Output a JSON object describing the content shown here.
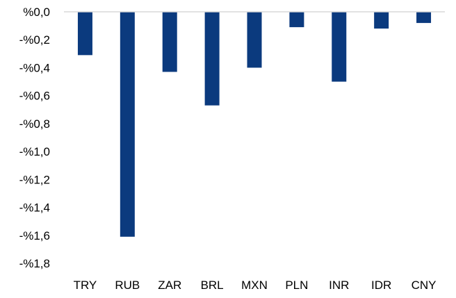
{
  "chart_data": {
    "type": "bar",
    "title": "",
    "xlabel": "",
    "ylabel": "",
    "categories": [
      "TRY",
      "RUB",
      "ZAR",
      "BRL",
      "MXN",
      "PLN",
      "INR",
      "IDR",
      "CNY"
    ],
    "values": [
      -0.31,
      -1.61,
      -0.43,
      -0.67,
      -0.4,
      -0.11,
      -0.5,
      -0.12,
      -0.08
    ],
    "ylim": [
      -1.8,
      0.0
    ],
    "yticks": [
      0.0,
      -0.2,
      -0.4,
      -0.6,
      -0.8,
      -1.0,
      -1.2,
      -1.4,
      -1.6,
      -1.8
    ],
    "ytick_labels": [
      "%0,0",
      "-%0,2",
      "-%0,4",
      "-%0,6",
      "-%0,8",
      "-%1,0",
      "-%1,2",
      "-%1,4",
      "-%1,6",
      "-%1,8"
    ],
    "grid": false,
    "legend": "none",
    "bar_color": "#0b3a7e",
    "axis_color": "#d9d9d9"
  }
}
